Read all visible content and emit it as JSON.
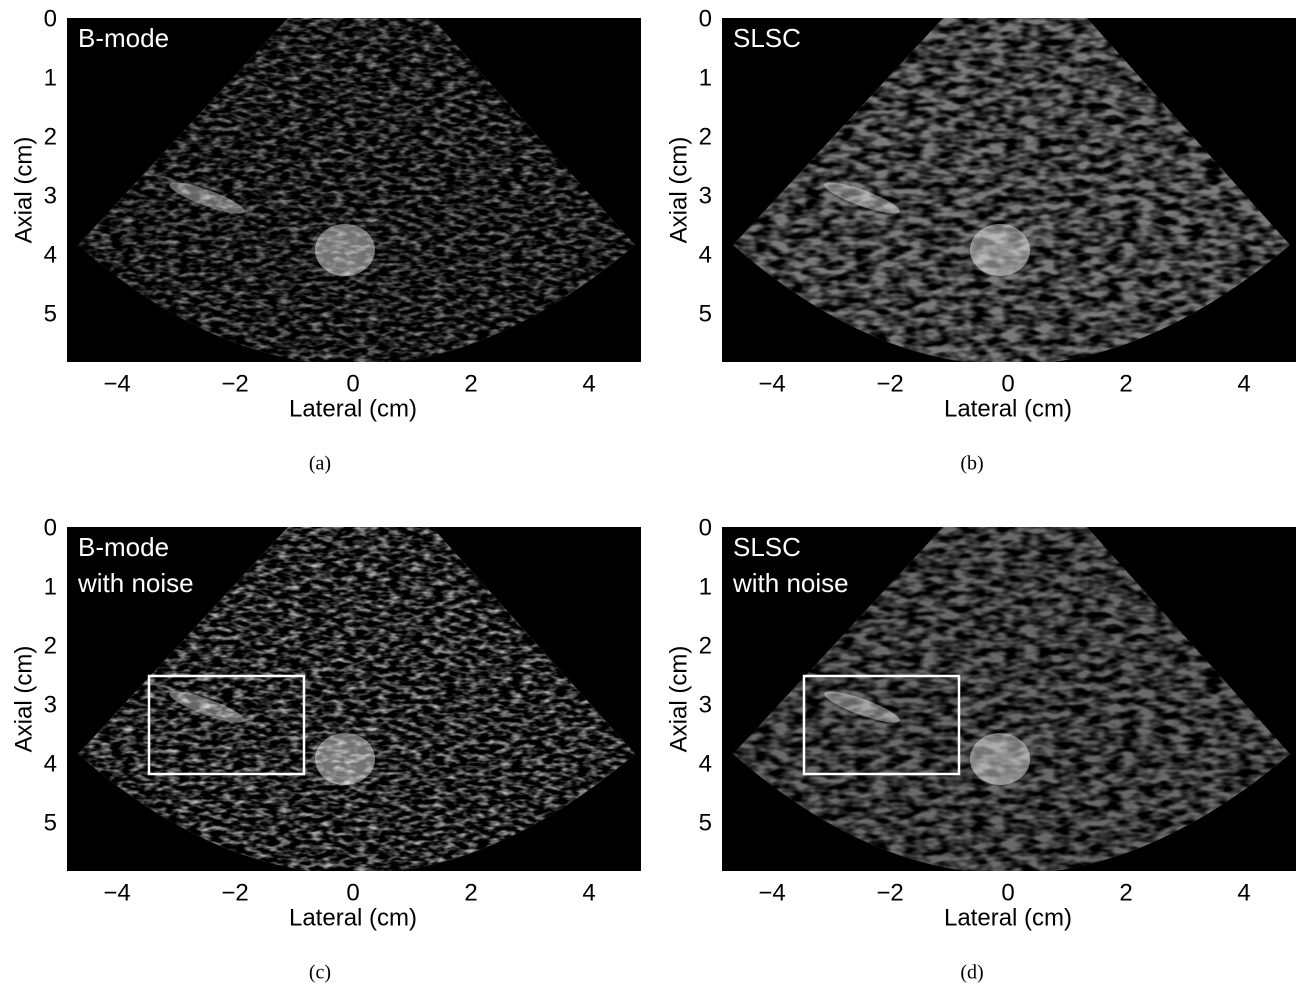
{
  "panels": [
    {
      "label": [
        "B-mode"
      ],
      "xticks": [
        "−4",
        "−2",
        "0",
        "2",
        "4"
      ],
      "yticks": [
        "0",
        "1",
        "2",
        "3",
        "4",
        "5"
      ],
      "xlabel": "Lateral (cm)",
      "ylabel": "Axial (cm)",
      "caption": "(a)"
    },
    {
      "label": [
        "SLSC"
      ],
      "xticks": [
        "−4",
        "−2",
        "0",
        "2",
        "4"
      ],
      "yticks": [
        "0",
        "1",
        "2",
        "3",
        "4",
        "5"
      ],
      "xlabel": "Lateral (cm)",
      "ylabel": "Axial (cm)",
      "caption": "(b)"
    },
    {
      "label": [
        "B-mode",
        "with noise"
      ],
      "xticks": [
        "−4",
        "−2",
        "0",
        "2",
        "4"
      ],
      "yticks": [
        "0",
        "1",
        "2",
        "3",
        "4",
        "5"
      ],
      "xlabel": "Lateral (cm)",
      "ylabel": "Axial (cm)",
      "caption": "(c)"
    },
    {
      "label": [
        "SLSC",
        "with noise"
      ],
      "xticks": [
        "−4",
        "−2",
        "0",
        "2",
        "4"
      ],
      "yticks": [
        "0",
        "1",
        "2",
        "3",
        "4",
        "5"
      ],
      "xlabel": "Lateral (cm)",
      "ylabel": "Axial (cm)",
      "caption": "(d)"
    }
  ]
}
